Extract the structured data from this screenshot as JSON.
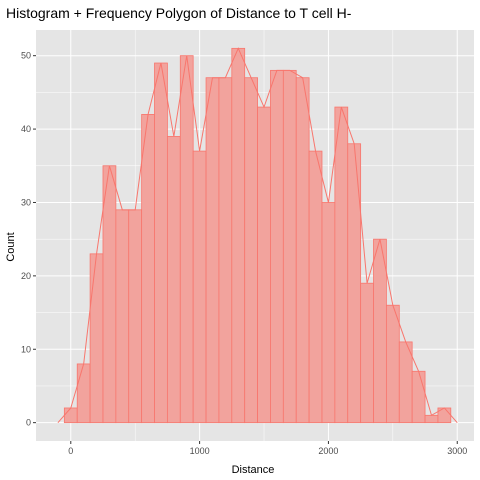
{
  "chart_data": {
    "type": "bar",
    "subtype": "histogram-with-frequency-polygon",
    "title": "Histogram + Frequency Polygon of Distance to T cell H-",
    "xlabel": "Distance",
    "ylabel": "Count",
    "xlim": [
      -270,
      3130
    ],
    "ylim": [
      -2.5,
      53.5
    ],
    "xticks": [
      0,
      1000,
      2000,
      3000
    ],
    "yticks": [
      0,
      10,
      20,
      30,
      40,
      50
    ],
    "bin_width": 100,
    "x": [
      0,
      100,
      200,
      300,
      400,
      500,
      600,
      700,
      800,
      900,
      1000,
      1100,
      1200,
      1300,
      1400,
      1500,
      1600,
      1700,
      1800,
      1900,
      2000,
      2100,
      2200,
      2300,
      2400,
      2500,
      2600,
      2700,
      2800,
      2900
    ],
    "values": [
      2,
      8,
      23,
      35,
      29,
      29,
      42,
      49,
      39,
      50,
      37,
      47,
      47,
      51,
      47,
      43,
      48,
      48,
      47,
      37,
      30,
      43,
      38,
      19,
      25,
      16,
      11,
      7,
      1,
      2
    ],
    "polygon_x": [
      -100,
      0,
      100,
      200,
      300,
      400,
      500,
      600,
      700,
      800,
      900,
      1000,
      1100,
      1200,
      1300,
      1400,
      1500,
      1600,
      1700,
      1800,
      1900,
      2000,
      2100,
      2200,
      2300,
      2400,
      2500,
      2600,
      2700,
      2800,
      2900,
      3000
    ],
    "polygon_y": [
      0,
      2,
      8,
      23,
      35,
      29,
      29,
      42,
      49,
      39,
      50,
      37,
      47,
      47,
      51,
      47,
      43,
      48,
      48,
      47,
      37,
      30,
      43,
      38,
      19,
      25,
      16,
      11,
      7,
      1,
      2,
      0
    ],
    "colors": {
      "panel": "#e5e5e5",
      "grid_major": "#ffffff",
      "bar_fill": "#f2a39d",
      "bar_stroke": "#f8766d",
      "line": "#f8766d"
    },
    "grid": true,
    "legend": "none"
  }
}
